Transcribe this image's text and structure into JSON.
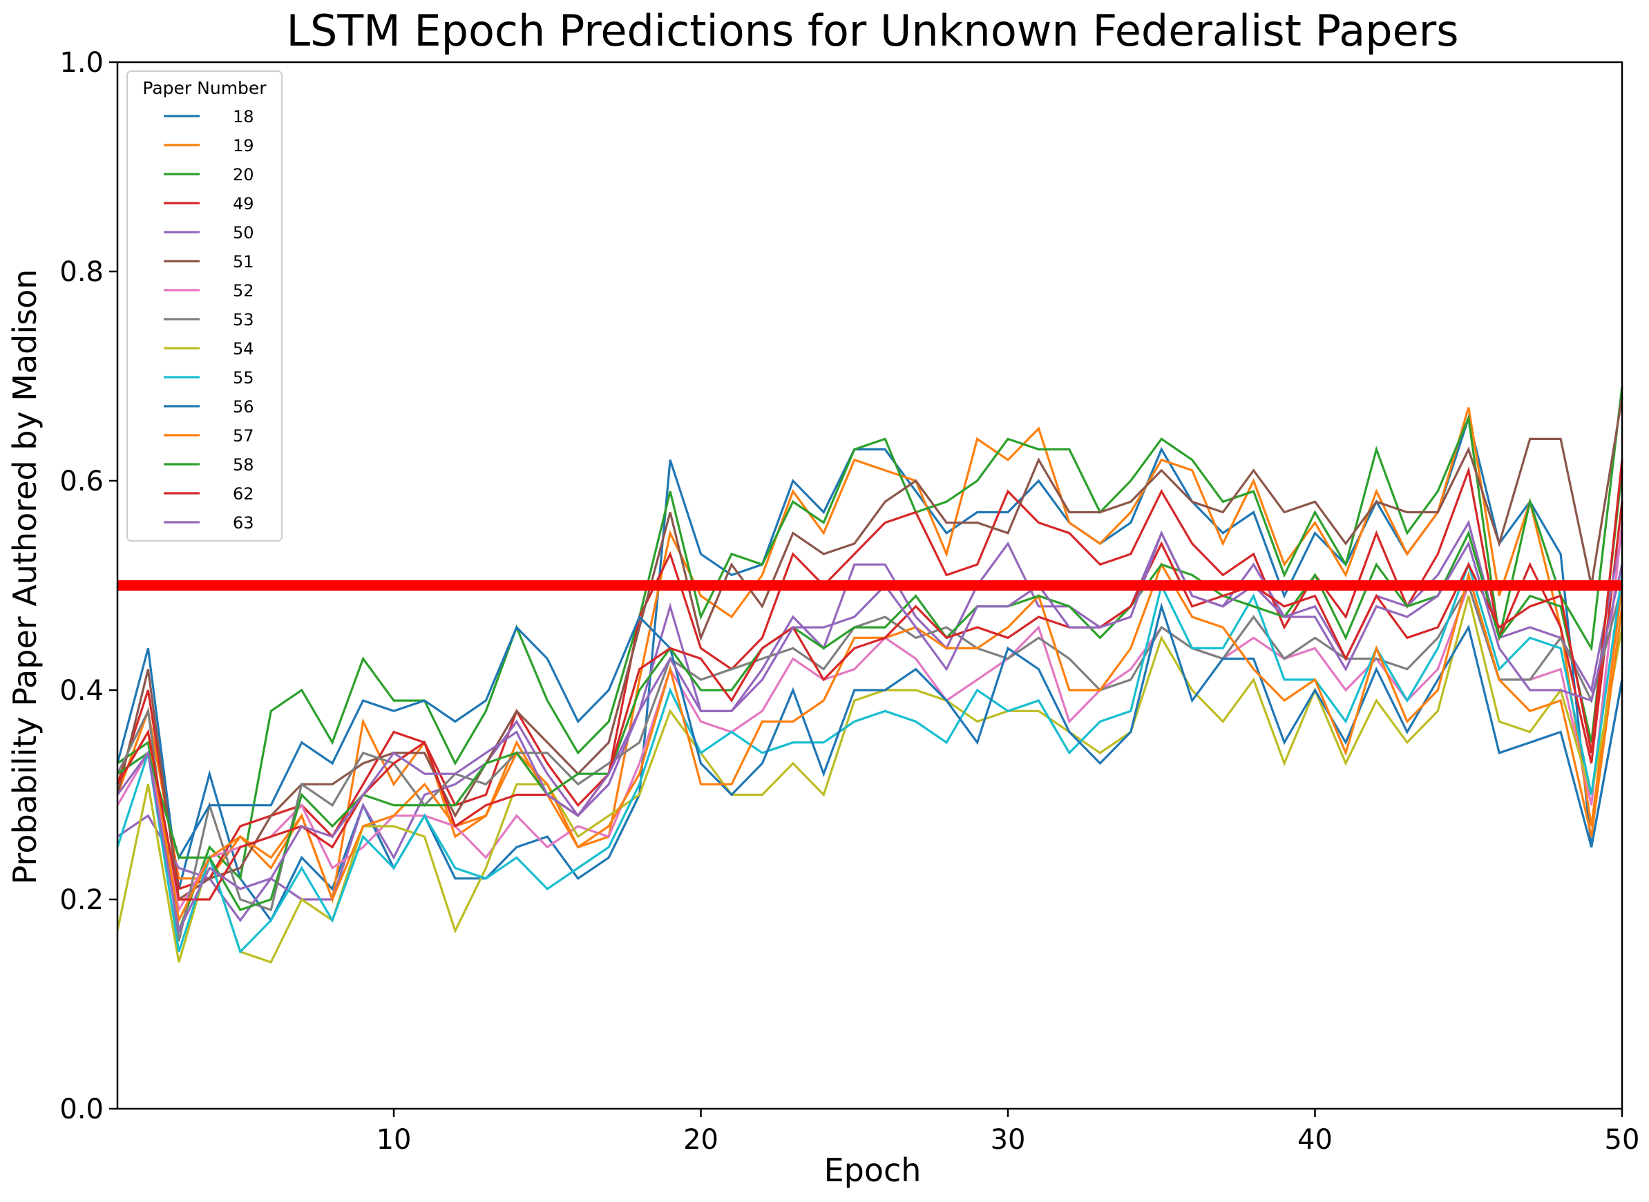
{
  "chart_data": {
    "type": "line",
    "title": "LSTM Epoch Predictions for Unknown Federalist Papers",
    "xlabel": "Epoch",
    "ylabel": "Probability Paper Authored by Madison",
    "xlim": [
      1,
      50
    ],
    "ylim": [
      0.0,
      1.0
    ],
    "xticks": [
      10,
      20,
      30,
      40,
      50
    ],
    "yticks": [
      0.0,
      0.2,
      0.4,
      0.6,
      0.8,
      1.0
    ],
    "xtick_labels": [
      "10",
      "20",
      "30",
      "40",
      "50"
    ],
    "ytick_labels": [
      "0.0",
      "0.2",
      "0.4",
      "0.6",
      "0.8",
      "1.0"
    ],
    "grid": false,
    "legend": {
      "title": "Paper Number",
      "placement": "upper-left"
    },
    "threshold": {
      "y": 0.5,
      "color": "#ff0000"
    },
    "x": [
      1,
      2,
      3,
      4,
      5,
      6,
      7,
      8,
      9,
      10,
      11,
      12,
      13,
      14,
      15,
      16,
      17,
      18,
      19,
      20,
      21,
      22,
      23,
      24,
      25,
      26,
      27,
      28,
      29,
      30,
      31,
      32,
      33,
      34,
      35,
      36,
      37,
      38,
      39,
      40,
      41,
      42,
      43,
      44,
      45,
      46,
      47,
      48,
      49,
      50
    ],
    "series": [
      {
        "name": "18",
        "color": "#1f77b4",
        "values": [
          0.33,
          0.44,
          0.21,
          0.32,
          0.22,
          0.18,
          0.24,
          0.21,
          0.29,
          0.23,
          0.28,
          0.22,
          0.22,
          0.25,
          0.26,
          0.22,
          0.24,
          0.3,
          0.62,
          0.53,
          0.51,
          0.52,
          0.6,
          0.57,
          0.63,
          0.63,
          0.59,
          0.55,
          0.57,
          0.57,
          0.6,
          0.56,
          0.54,
          0.56,
          0.63,
          0.58,
          0.55,
          0.57,
          0.49,
          0.55,
          0.52,
          0.58,
          0.53,
          0.57,
          0.66,
          0.54,
          0.58,
          0.53,
          0.25,
          0.41
        ]
      },
      {
        "name": "19",
        "color": "#ff7f0e",
        "values": [
          0.3,
          0.38,
          0.22,
          0.22,
          0.26,
          0.23,
          0.28,
          0.2,
          0.37,
          0.31,
          0.35,
          0.26,
          0.28,
          0.35,
          0.3,
          0.25,
          0.26,
          0.41,
          0.55,
          0.49,
          0.47,
          0.51,
          0.59,
          0.55,
          0.62,
          0.61,
          0.6,
          0.53,
          0.64,
          0.62,
          0.65,
          0.56,
          0.54,
          0.57,
          0.62,
          0.61,
          0.54,
          0.6,
          0.52,
          0.56,
          0.51,
          0.59,
          0.53,
          0.57,
          0.67,
          0.49,
          0.58,
          0.46,
          0.27,
          0.5
        ]
      },
      {
        "name": "20",
        "color": "#2ca02c",
        "values": [
          0.33,
          0.35,
          0.17,
          0.25,
          0.22,
          0.38,
          0.4,
          0.35,
          0.43,
          0.39,
          0.39,
          0.33,
          0.38,
          0.46,
          0.39,
          0.34,
          0.37,
          0.47,
          0.59,
          0.47,
          0.53,
          0.52,
          0.58,
          0.56,
          0.63,
          0.64,
          0.57,
          0.58,
          0.6,
          0.64,
          0.63,
          0.63,
          0.57,
          0.6,
          0.64,
          0.62,
          0.58,
          0.59,
          0.51,
          0.57,
          0.52,
          0.63,
          0.55,
          0.59,
          0.66,
          0.45,
          0.58,
          0.49,
          0.44,
          0.69
        ]
      },
      {
        "name": "49",
        "color": "#d62728",
        "values": [
          0.31,
          0.4,
          0.21,
          0.22,
          0.27,
          0.28,
          0.29,
          0.26,
          0.31,
          0.36,
          0.35,
          0.29,
          0.3,
          0.38,
          0.33,
          0.29,
          0.32,
          0.47,
          0.53,
          0.44,
          0.42,
          0.45,
          0.53,
          0.5,
          0.53,
          0.56,
          0.57,
          0.51,
          0.52,
          0.59,
          0.56,
          0.55,
          0.52,
          0.53,
          0.59,
          0.54,
          0.51,
          0.53,
          0.46,
          0.51,
          0.47,
          0.55,
          0.48,
          0.53,
          0.61,
          0.45,
          0.52,
          0.46,
          0.33,
          0.58
        ]
      },
      {
        "name": "50",
        "color": "#9467bd",
        "values": [
          0.26,
          0.28,
          0.23,
          0.22,
          0.18,
          0.22,
          0.2,
          0.2,
          0.29,
          0.24,
          0.3,
          0.31,
          0.33,
          0.37,
          0.32,
          0.28,
          0.31,
          0.38,
          0.48,
          0.38,
          0.38,
          0.42,
          0.47,
          0.44,
          0.52,
          0.52,
          0.47,
          0.44,
          0.5,
          0.54,
          0.48,
          0.48,
          0.46,
          0.48,
          0.55,
          0.49,
          0.48,
          0.52,
          0.47,
          0.48,
          0.43,
          0.49,
          0.48,
          0.51,
          0.56,
          0.45,
          0.46,
          0.45,
          0.4,
          0.55
        ]
      },
      {
        "name": "51",
        "color": "#8c564b",
        "values": [
          0.3,
          0.42,
          0.2,
          0.22,
          0.23,
          0.28,
          0.31,
          0.31,
          0.33,
          0.34,
          0.34,
          0.28,
          0.33,
          0.38,
          0.35,
          0.32,
          0.35,
          0.46,
          0.57,
          0.45,
          0.52,
          0.48,
          0.55,
          0.53,
          0.54,
          0.58,
          0.6,
          0.56,
          0.56,
          0.55,
          0.62,
          0.57,
          0.57,
          0.58,
          0.61,
          0.58,
          0.57,
          0.61,
          0.57,
          0.58,
          0.54,
          0.58,
          0.57,
          0.57,
          0.63,
          0.54,
          0.64,
          0.64,
          0.5,
          0.68
        ]
      },
      {
        "name": "52",
        "color": "#e377c2",
        "values": [
          0.29,
          0.34,
          0.19,
          0.24,
          0.25,
          0.26,
          0.29,
          0.23,
          0.25,
          0.28,
          0.28,
          0.27,
          0.24,
          0.28,
          0.25,
          0.27,
          0.26,
          0.33,
          0.42,
          0.37,
          0.36,
          0.38,
          0.43,
          0.41,
          0.42,
          0.45,
          0.43,
          0.39,
          0.41,
          0.43,
          0.46,
          0.37,
          0.4,
          0.42,
          0.46,
          0.44,
          0.43,
          0.45,
          0.43,
          0.44,
          0.4,
          0.43,
          0.39,
          0.42,
          0.5,
          0.41,
          0.41,
          0.42,
          0.29,
          0.56
        ]
      },
      {
        "name": "53",
        "color": "#7f7f7f",
        "values": [
          0.32,
          0.38,
          0.16,
          0.29,
          0.2,
          0.19,
          0.31,
          0.29,
          0.34,
          0.33,
          0.29,
          0.32,
          0.31,
          0.34,
          0.34,
          0.31,
          0.33,
          0.35,
          0.43,
          0.41,
          0.42,
          0.43,
          0.44,
          0.42,
          0.46,
          0.47,
          0.45,
          0.46,
          0.44,
          0.43,
          0.45,
          0.43,
          0.4,
          0.41,
          0.46,
          0.44,
          0.43,
          0.47,
          0.43,
          0.45,
          0.43,
          0.43,
          0.42,
          0.45,
          0.5,
          0.41,
          0.41,
          0.45,
          0.39,
          0.5
        ]
      },
      {
        "name": "54",
        "color": "#bcbd22",
        "values": [
          0.17,
          0.31,
          0.14,
          0.24,
          0.15,
          0.14,
          0.2,
          0.18,
          0.27,
          0.27,
          0.26,
          0.17,
          0.23,
          0.31,
          0.31,
          0.26,
          0.28,
          0.3,
          0.38,
          0.34,
          0.3,
          0.3,
          0.33,
          0.3,
          0.39,
          0.4,
          0.4,
          0.39,
          0.37,
          0.38,
          0.38,
          0.36,
          0.34,
          0.36,
          0.45,
          0.4,
          0.37,
          0.41,
          0.33,
          0.4,
          0.33,
          0.39,
          0.35,
          0.38,
          0.49,
          0.37,
          0.36,
          0.4,
          0.3,
          0.46
        ]
      },
      {
        "name": "55",
        "color": "#17becf",
        "values": [
          0.25,
          0.34,
          0.15,
          0.24,
          0.15,
          0.18,
          0.23,
          0.18,
          0.26,
          0.23,
          0.28,
          0.23,
          0.22,
          0.24,
          0.21,
          0.23,
          0.25,
          0.31,
          0.4,
          0.34,
          0.36,
          0.34,
          0.35,
          0.35,
          0.37,
          0.38,
          0.37,
          0.35,
          0.4,
          0.38,
          0.39,
          0.34,
          0.37,
          0.38,
          0.5,
          0.44,
          0.44,
          0.49,
          0.41,
          0.41,
          0.37,
          0.44,
          0.39,
          0.44,
          0.52,
          0.42,
          0.45,
          0.44,
          0.3,
          0.51
        ]
      },
      {
        "name": "56",
        "color": "#1f77b4",
        "values": [
          0.32,
          0.34,
          0.24,
          0.29,
          0.29,
          0.29,
          0.35,
          0.33,
          0.39,
          0.38,
          0.39,
          0.37,
          0.39,
          0.46,
          0.43,
          0.37,
          0.4,
          0.47,
          0.44,
          0.33,
          0.3,
          0.33,
          0.4,
          0.32,
          0.4,
          0.4,
          0.42,
          0.39,
          0.35,
          0.44,
          0.42,
          0.36,
          0.33,
          0.36,
          0.48,
          0.39,
          0.43,
          0.43,
          0.35,
          0.4,
          0.35,
          0.42,
          0.36,
          0.41,
          0.46,
          0.34,
          0.35,
          0.36,
          0.25,
          0.41
        ]
      },
      {
        "name": "57",
        "color": "#ff7f0e",
        "values": [
          0.31,
          0.36,
          0.18,
          0.24,
          0.26,
          0.24,
          0.28,
          0.2,
          0.27,
          0.28,
          0.31,
          0.27,
          0.28,
          0.34,
          0.31,
          0.25,
          0.27,
          0.32,
          0.42,
          0.31,
          0.31,
          0.37,
          0.37,
          0.39,
          0.45,
          0.45,
          0.46,
          0.44,
          0.44,
          0.46,
          0.49,
          0.4,
          0.4,
          0.44,
          0.52,
          0.47,
          0.46,
          0.42,
          0.39,
          0.41,
          0.34,
          0.44,
          0.37,
          0.4,
          0.51,
          0.41,
          0.38,
          0.39,
          0.26,
          0.48
        ]
      },
      {
        "name": "58",
        "color": "#2ca02c",
        "values": [
          0.32,
          0.34,
          0.24,
          0.24,
          0.19,
          0.2,
          0.3,
          0.27,
          0.3,
          0.29,
          0.29,
          0.29,
          0.33,
          0.34,
          0.3,
          0.32,
          0.32,
          0.4,
          0.44,
          0.4,
          0.4,
          0.44,
          0.46,
          0.44,
          0.46,
          0.46,
          0.49,
          0.45,
          0.48,
          0.48,
          0.49,
          0.48,
          0.45,
          0.48,
          0.52,
          0.51,
          0.49,
          0.48,
          0.47,
          0.51,
          0.45,
          0.52,
          0.48,
          0.49,
          0.55,
          0.45,
          0.49,
          0.48,
          0.35,
          0.61
        ]
      },
      {
        "name": "62",
        "color": "#d62728",
        "values": [
          0.31,
          0.36,
          0.2,
          0.2,
          0.25,
          0.26,
          0.27,
          0.25,
          0.3,
          0.33,
          0.35,
          0.27,
          0.29,
          0.3,
          0.3,
          0.28,
          0.32,
          0.42,
          0.44,
          0.43,
          0.39,
          0.44,
          0.46,
          0.41,
          0.44,
          0.45,
          0.48,
          0.45,
          0.46,
          0.45,
          0.47,
          0.46,
          0.46,
          0.48,
          0.54,
          0.48,
          0.49,
          0.5,
          0.48,
          0.49,
          0.43,
          0.49,
          0.45,
          0.46,
          0.52,
          0.46,
          0.48,
          0.49,
          0.34,
          0.62
        ]
      },
      {
        "name": "63",
        "color": "#9467bd",
        "values": [
          0.3,
          0.34,
          0.17,
          0.23,
          0.21,
          0.22,
          0.27,
          0.26,
          0.3,
          0.34,
          0.32,
          0.32,
          0.34,
          0.36,
          0.3,
          0.28,
          0.32,
          0.38,
          0.43,
          0.38,
          0.38,
          0.41,
          0.46,
          0.46,
          0.47,
          0.5,
          0.46,
          0.42,
          0.48,
          0.48,
          0.5,
          0.46,
          0.46,
          0.47,
          0.55,
          0.49,
          0.48,
          0.5,
          0.47,
          0.47,
          0.42,
          0.48,
          0.47,
          0.49,
          0.54,
          0.44,
          0.4,
          0.4,
          0.39,
          0.52
        ]
      }
    ]
  }
}
